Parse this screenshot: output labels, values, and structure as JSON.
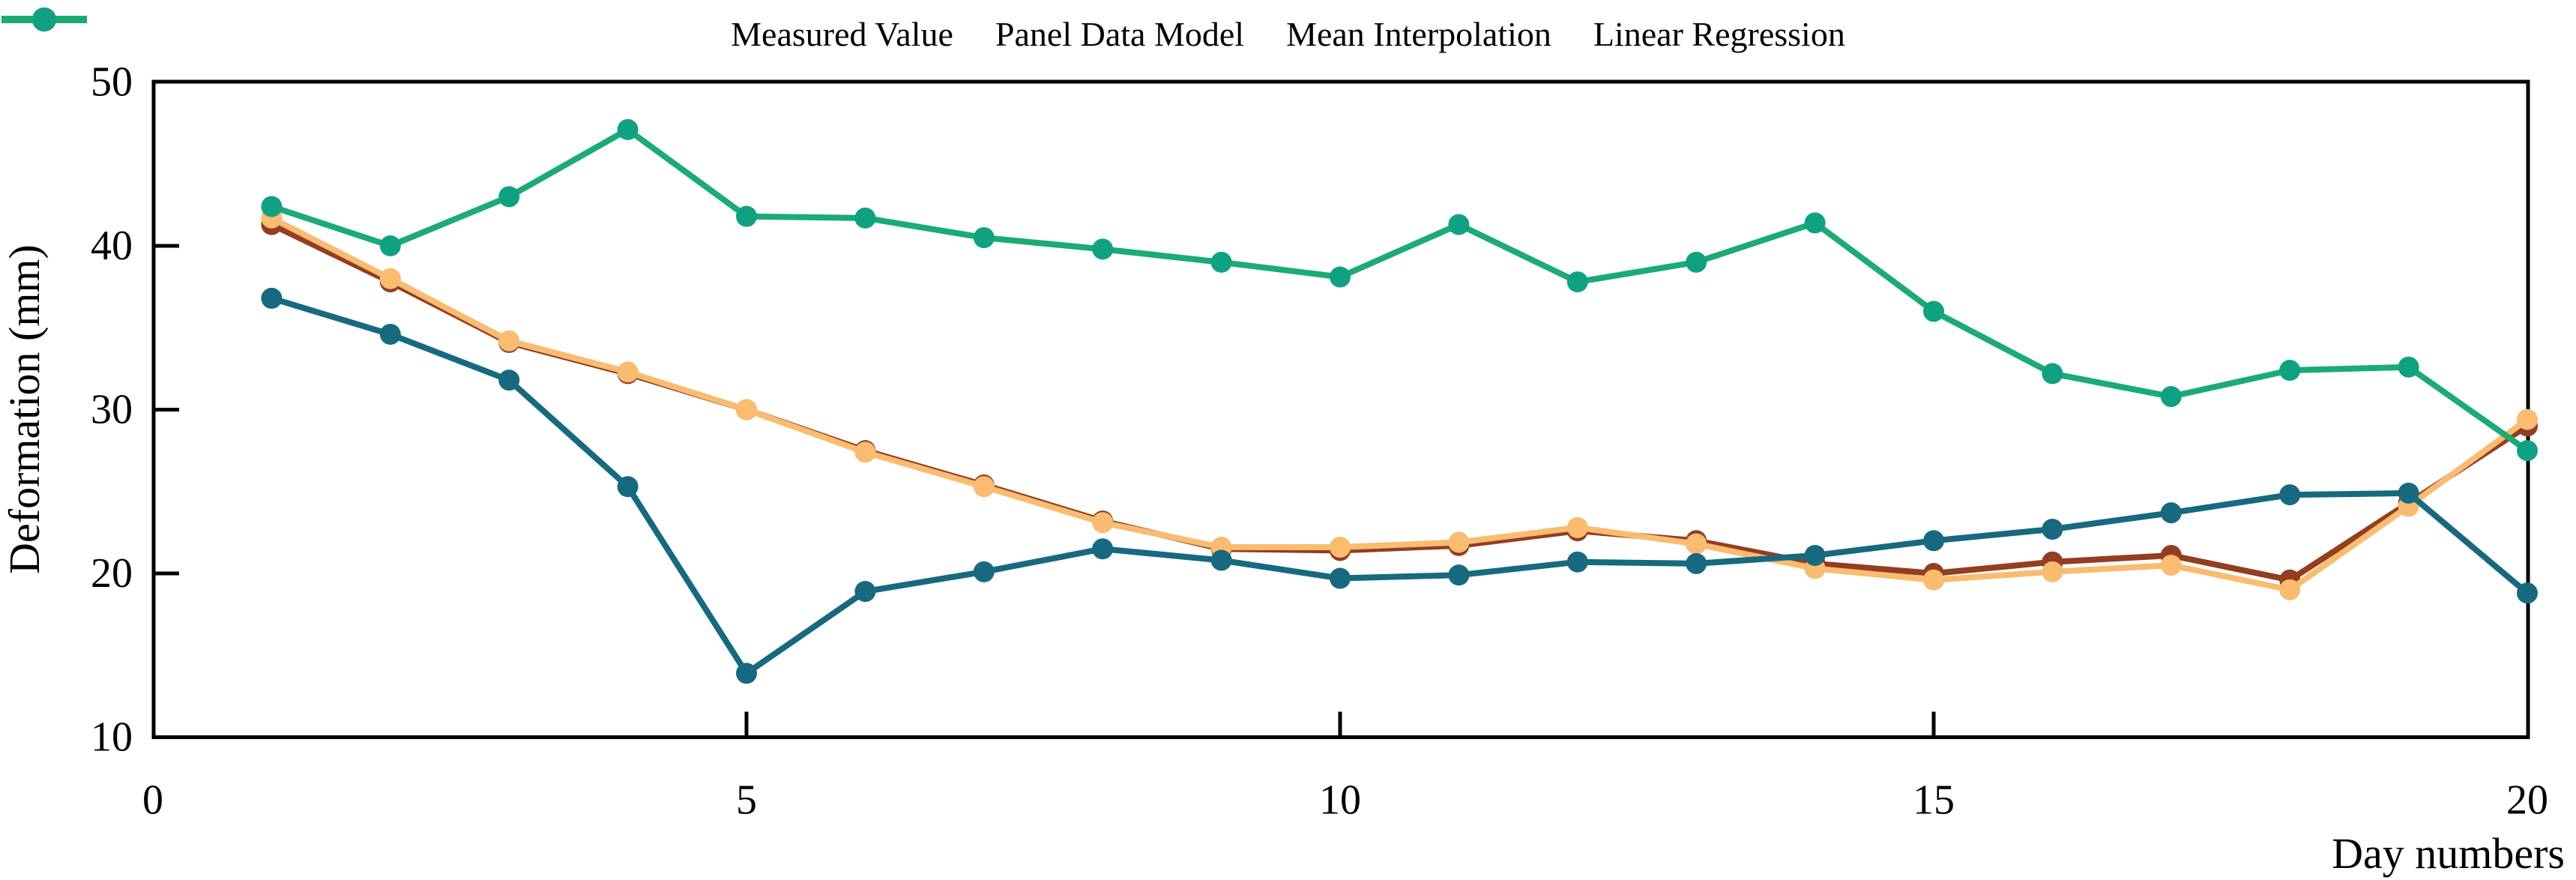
{
  "background": "#FFFFFF",
  "axis_color": "#000000",
  "chart_data": {
    "type": "line",
    "title": "",
    "xlabel": "Day numbers",
    "ylabel": "Deformation (mm)",
    "x": [
      1,
      2,
      3,
      4,
      5,
      6,
      7,
      8,
      9,
      10,
      11,
      12,
      13,
      14,
      15,
      16,
      17,
      18,
      19,
      20
    ],
    "xlim": [
      0,
      20
    ],
    "ylim": [
      10,
      50
    ],
    "xticks": [
      0,
      5,
      10,
      15,
      20
    ],
    "yticks": [
      10,
      20,
      30,
      40,
      50
    ],
    "grid": false,
    "legend_position": "top",
    "series": [
      {
        "name": "Measured Value",
        "color": "#943D20",
        "marker_color": "#943D20",
        "values": [
          41.3,
          37.8,
          34.1,
          32.2,
          30.0,
          27.5,
          25.4,
          23.2,
          21.5,
          21.4,
          21.7,
          22.6,
          22.0,
          20.6,
          20.0,
          20.7,
          21.1,
          19.6,
          24.3,
          29.0
        ]
      },
      {
        "name": "Panel Data Model",
        "color": "#F9BC70",
        "marker_color": "#F9BC70",
        "values": [
          41.7,
          38.0,
          34.2,
          32.3,
          30.0,
          27.4,
          25.3,
          23.1,
          21.6,
          21.6,
          21.9,
          22.8,
          21.8,
          20.3,
          19.6,
          20.1,
          20.5,
          19.0,
          24.1,
          29.4
        ]
      },
      {
        "name": "Mean Interpolation",
        "color": "#17697F",
        "marker_color": "#17697F",
        "values": [
          36.8,
          34.6,
          31.8,
          25.3,
          13.9,
          18.9,
          20.1,
          21.5,
          20.8,
          19.7,
          19.9,
          20.7,
          20.6,
          21.1,
          22.0,
          22.7,
          23.7,
          24.8,
          24.9,
          18.8
        ]
      },
      {
        "name": "Linear Regression",
        "color": "#1BAB74",
        "marker_color": "#10A183",
        "values": [
          42.4,
          40.0,
          43.0,
          47.1,
          41.8,
          41.7,
          40.5,
          39.8,
          39.0,
          38.1,
          41.3,
          37.8,
          39.0,
          41.4,
          36.0,
          32.2,
          30.8,
          32.4,
          32.6,
          27.5
        ]
      }
    ]
  }
}
